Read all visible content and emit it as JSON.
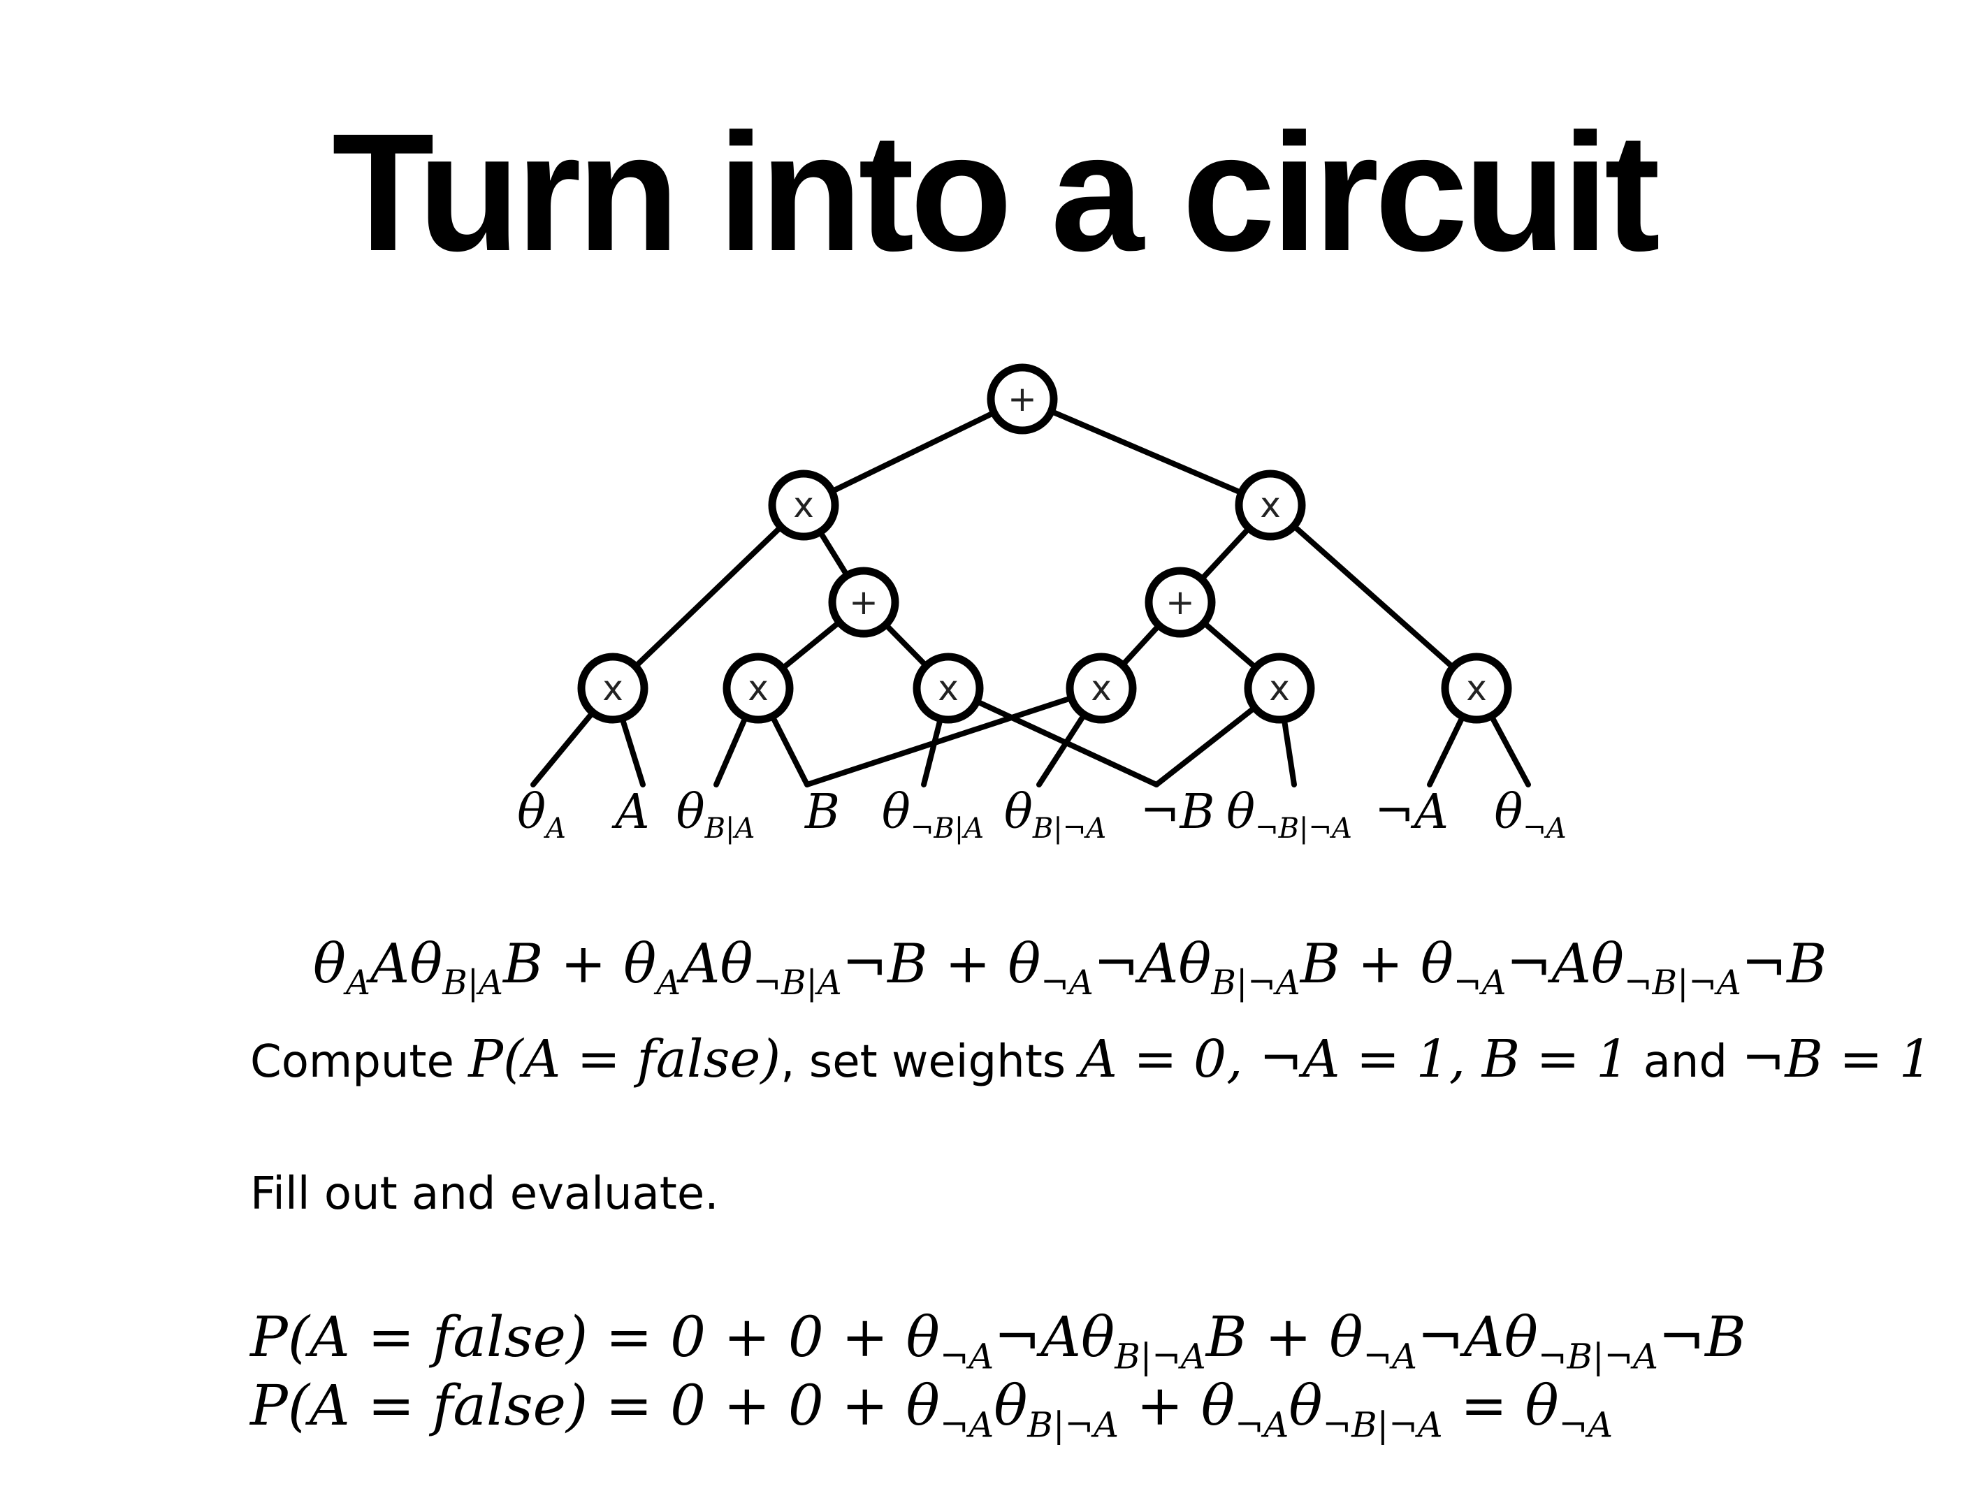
{
  "slide": {
    "title": "Turn into a circuit"
  },
  "circuit": {
    "nodes": [
      {
        "id": "root",
        "op": "+"
      },
      {
        "id": "prod-left",
        "op": "x"
      },
      {
        "id": "prod-right",
        "op": "x"
      },
      {
        "id": "sum-left",
        "op": "+"
      },
      {
        "id": "sum-right",
        "op": "+"
      },
      {
        "id": "prod-1",
        "op": "x"
      },
      {
        "id": "prod-2",
        "op": "x"
      },
      {
        "id": "prod-3",
        "op": "x"
      },
      {
        "id": "prod-4",
        "op": "x"
      },
      {
        "id": "prod-5",
        "op": "x"
      },
      {
        "id": "prod-6",
        "op": "x"
      }
    ],
    "leaves": [
      {
        "main": "θ",
        "sub": "A"
      },
      {
        "main": "A",
        "sub": ""
      },
      {
        "main": "θ",
        "sub": "B|A"
      },
      {
        "main": "B",
        "sub": ""
      },
      {
        "main": "θ",
        "sub": "¬B|A"
      },
      {
        "main": "θ",
        "sub": "B|¬A"
      },
      {
        "main": "¬B",
        "sub": ""
      },
      {
        "main": "θ",
        "sub": "¬B|¬A"
      },
      {
        "main": "¬A",
        "sub": ""
      },
      {
        "main": "θ",
        "sub": "¬A"
      }
    ],
    "edges": [
      [
        "root",
        "prod-left"
      ],
      [
        "root",
        "prod-right"
      ],
      [
        "prod-left",
        "prod-1"
      ],
      [
        "prod-left",
        "sum-left"
      ],
      [
        "prod-right",
        "sum-right"
      ],
      [
        "prod-right",
        "prod-6"
      ],
      [
        "sum-left",
        "prod-2"
      ],
      [
        "sum-left",
        "prod-3"
      ],
      [
        "sum-right",
        "prod-4"
      ],
      [
        "sum-right",
        "prod-5"
      ],
      [
        "prod-1",
        "leaf-0"
      ],
      [
        "prod-1",
        "leaf-1"
      ],
      [
        "prod-2",
        "leaf-2"
      ],
      [
        "prod-2",
        "leaf-3"
      ],
      [
        "prod-3",
        "leaf-4"
      ],
      [
        "prod-3",
        "leaf-6"
      ],
      [
        "prod-4",
        "leaf-3"
      ],
      [
        "prod-4",
        "leaf-5"
      ],
      [
        "prod-5",
        "leaf-6"
      ],
      [
        "prod-5",
        "leaf-7"
      ],
      [
        "prod-6",
        "leaf-8"
      ],
      [
        "prod-6",
        "leaf-9"
      ]
    ]
  },
  "text": {
    "compute_prefix": "Compute ",
    "compute_mid1": ", set weights ",
    "compute_and": " and ",
    "fill_out": "Fill out and evaluate."
  }
}
